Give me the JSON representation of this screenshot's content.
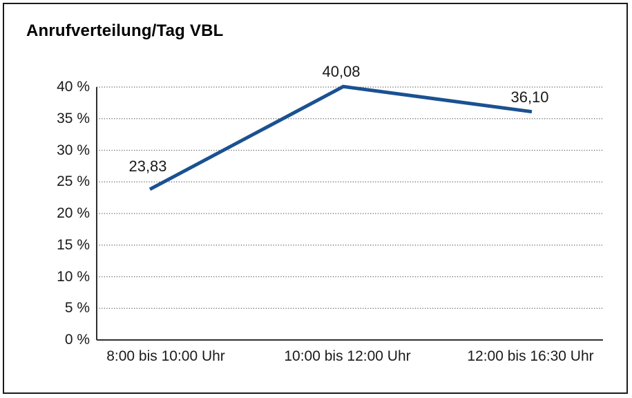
{
  "title": "Anrufverteilung/Tag VBL",
  "chart_data": {
    "type": "line",
    "title": "Anrufverteilung/Tag VBL",
    "categories": [
      "8:00 bis 10:00 Uhr",
      "10:00 bis 12:00 Uhr",
      "12:00 bis 16:30 Uhr"
    ],
    "values": [
      23.83,
      40.08,
      36.1
    ],
    "value_labels": [
      "23,83",
      "40,08",
      "36,10"
    ],
    "xlabel": "",
    "ylabel": "",
    "ylim": [
      0,
      40
    ],
    "yticks": [
      0,
      5,
      10,
      15,
      20,
      25,
      30,
      35,
      40
    ],
    "ytick_labels": [
      "0 %",
      "5 %",
      "10 %",
      "15 %",
      "20 %",
      "25 %",
      "30 %",
      "35 %",
      "40 %"
    ],
    "grid": "horizontal-dotted",
    "legend": "none",
    "series_name": "Anrufverteilung"
  },
  "colors": {
    "line": "#1A5191",
    "grid": "#5a5a5a",
    "axis": "#2e2e2e",
    "frame_border": "#1a1a1a",
    "text": "#1a1a1a",
    "background": "#ffffff"
  }
}
